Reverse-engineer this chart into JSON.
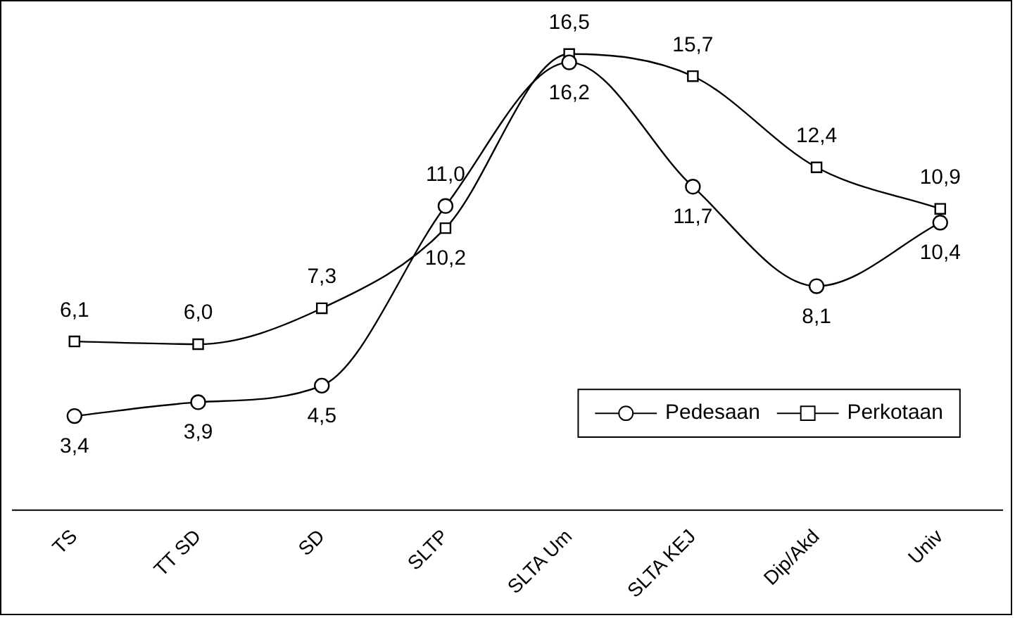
{
  "chart_data": {
    "type": "line",
    "categories": [
      "TS",
      "TT SD",
      "SD",
      "SLTP",
      "SLTA Um",
      "SLTA KEJ",
      "Dip/Akd",
      "Univ"
    ],
    "series": [
      {
        "name": "Pedesaan",
        "color": "#000000",
        "marker": "circle",
        "values": [
          3.4,
          3.9,
          4.5,
          11.0,
          16.2,
          11.7,
          8.1,
          10.4
        ],
        "value_labels": [
          "3,4",
          "3,9",
          "4,5",
          "11,0",
          "16,2",
          "11,7",
          "8,1",
          "10,4"
        ]
      },
      {
        "name": "Perkotaan",
        "color": "#000000",
        "marker": "square",
        "values": [
          6.1,
          6.0,
          7.3,
          10.2,
          16.5,
          15.7,
          12.4,
          10.9
        ],
        "value_labels": [
          "6,1",
          "6,0",
          "7,3",
          "10,2",
          "16,5",
          "15,7",
          "12,4",
          "10,9"
        ]
      }
    ],
    "grid": false,
    "legend": "bottom right",
    "tick_labels": "x"
  }
}
